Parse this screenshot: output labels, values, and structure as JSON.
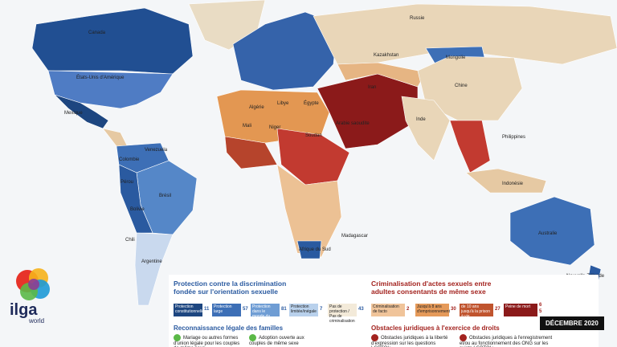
{
  "map": {
    "date_badge": "DÉCEMBRE 2020",
    "logo": {
      "name": "ilga",
      "subtitle": "world"
    },
    "country_labels": [
      "Canada",
      "États-Unis d'Amérique",
      "Mexique",
      "Colombie",
      "Venezuela",
      "Pérou",
      "Brésil",
      "Bolivie",
      "Argentine",
      "Chili",
      "Russie",
      "Kazakhstan",
      "Mongolie",
      "Chine",
      "Inde",
      "Iran",
      "Arabie saoudite",
      "Mali",
      "Niger",
      "Algérie",
      "Libye",
      "Égypte",
      "Soudan",
      "Afrique du Sud",
      "Madagascar",
      "Philippines",
      "Indonésie",
      "Australie",
      "Nouvelle-Zélande"
    ]
  },
  "legend": {
    "protection": {
      "title": "Protection contre la discrimination fondée sur l'orientation sexuelle",
      "items": [
        {
          "label": "Protection constitutionnelle",
          "count": 11
        },
        {
          "label": "Protection large",
          "count": 57
        },
        {
          "label": "Protection dans le monde du travail",
          "count": 81
        },
        {
          "label": "Protection limitée/inégale",
          "count": 7
        },
        {
          "label": "Pas de protection / Pas de criminalisation",
          "count": 43
        }
      ]
    },
    "criminalisation": {
      "title": "Criminalisation d'actes sexuels entre adultes consentants de même sexe",
      "items": [
        {
          "label": "Criminalisation de facto",
          "count": 2
        },
        {
          "label": "Jusqu'à 8 ans d'emprisonnement",
          "count": 30
        },
        {
          "label": "de 10 ans jusqu'à la prison à vie",
          "count": 27
        },
        {
          "label": "Peine de mort",
          "counts": [
            6,
            5
          ]
        }
      ]
    },
    "families": {
      "title": "Reconnaissance légale des familles",
      "items": [
        "Mariage ou autres formes d'union légale pour les couples de même sexe",
        "Adoption ouverte aux couples de même sexe"
      ]
    },
    "obstacles": {
      "title": "Obstacles juridiques à l'exercice de droits",
      "items": [
        "Obstacles juridiques à la liberté d'expression sur les questions LGBTQI+",
        "Obstacles juridiques à l'enregistrement et/ou au fonctionnement des ONG sur les sujets LGBTQI+"
      ]
    }
  }
}
